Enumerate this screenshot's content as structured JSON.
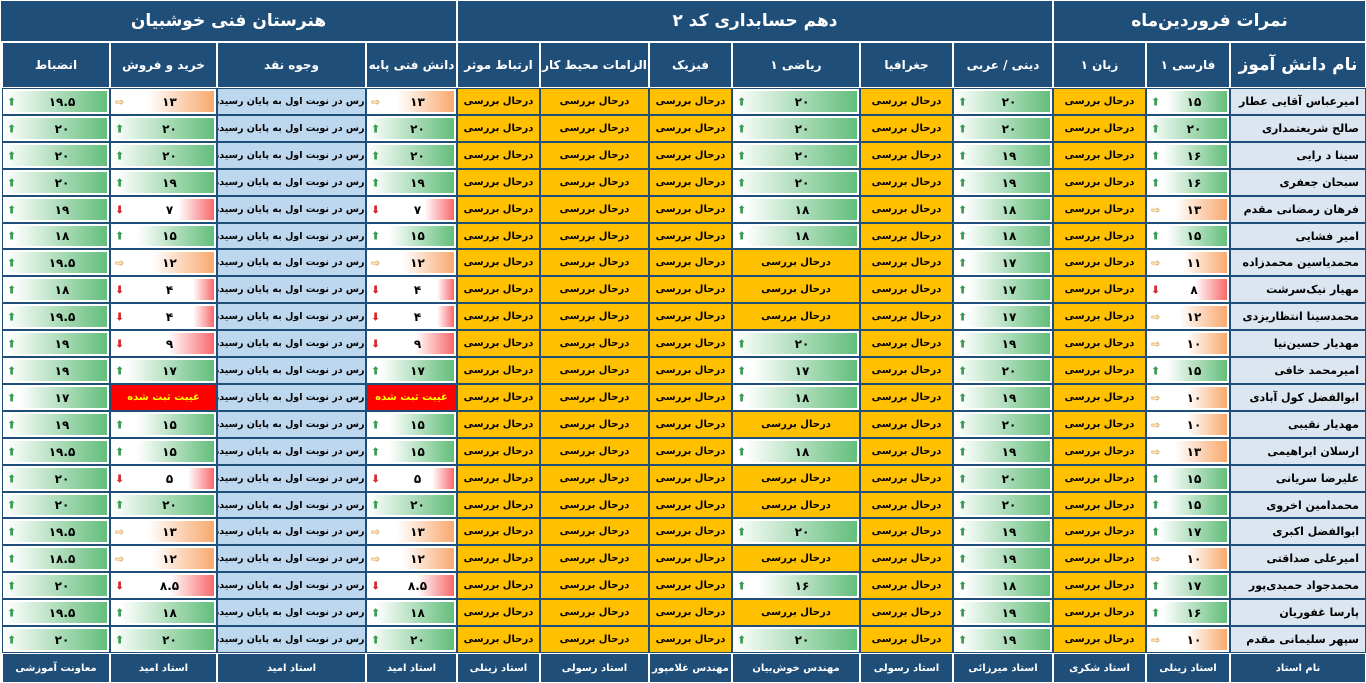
{
  "headers": {
    "right_title": "نمرات فروردین‌ماه",
    "middle_title": "دهم حسابداری کد ۲",
    "left_title": "هنرستان فنی خوشبیان"
  },
  "columns": [
    {
      "key": "name",
      "label": "نام دانش آموز",
      "teacher": "نام استاد"
    },
    {
      "key": "farsi",
      "label": "فارسی ۱",
      "teacher": "استاد زینلی"
    },
    {
      "key": "zaban",
      "label": "زبان ۱",
      "teacher": "استاد شکری"
    },
    {
      "key": "dini",
      "label": "دینی / عربی",
      "teacher": "استاد میرزائی"
    },
    {
      "key": "joghrafi",
      "label": "جغرافیا",
      "teacher": "استاد رسولی"
    },
    {
      "key": "riazi",
      "label": "ریاضی ۱",
      "teacher": "مهندس خوش‌بیان"
    },
    {
      "key": "fizik",
      "label": "فیزیک",
      "teacher": "مهندس غلامپور"
    },
    {
      "key": "elzamat",
      "label": "الزامات محیط کار",
      "teacher": "استاد رسولی"
    },
    {
      "key": "ertebat",
      "label": "ارتباط موثر",
      "teacher": "استاد زینلی"
    },
    {
      "key": "danesh",
      "label": "دانش فنی پایه",
      "teacher": "استاد امید"
    },
    {
      "key": "vojooh",
      "label": "وجوه نقد",
      "teacher": "استاد امید"
    },
    {
      "key": "kharid",
      "label": "خرید و فروش",
      "teacher": "استاد امید"
    },
    {
      "key": "enzebat",
      "label": "انضباط",
      "teacher": "معاونت آموزشی"
    }
  ],
  "status_texts": {
    "review": "درحال بررسی",
    "end_turn": "درس در نوبت اول به پایان رسیده",
    "absent": "غیبت ثبت شده"
  },
  "rows": [
    {
      "name": "امیرعباس آقایی عطار",
      "farsi": "۱۵",
      "zaban": "R",
      "dini": "۲۰",
      "joghrafi": "R",
      "riazi": "۲۰",
      "fizik": "R",
      "elzamat": "R",
      "ertebat": "R",
      "danesh": "۱۳",
      "vojooh": "E",
      "kharid": "۱۳",
      "enzebat": "۱۹.۵"
    },
    {
      "name": "صالح شریعتمداری",
      "farsi": "۲۰",
      "zaban": "R",
      "dini": "۲۰",
      "joghrafi": "R",
      "riazi": "۲۰",
      "fizik": "R",
      "elzamat": "R",
      "ertebat": "R",
      "danesh": "۲۰",
      "vojooh": "E",
      "kharid": "۲۰",
      "enzebat": "۲۰"
    },
    {
      "name": "سینا د رایی",
      "farsi": "۱۶",
      "zaban": "R",
      "dini": "۱۹",
      "joghrafi": "R",
      "riazi": "۲۰",
      "fizik": "R",
      "elzamat": "R",
      "ertebat": "R",
      "danesh": "۲۰",
      "vojooh": "E",
      "kharid": "۲۰",
      "enzebat": "۲۰"
    },
    {
      "name": "سبحان جعفری",
      "farsi": "۱۶",
      "zaban": "R",
      "dini": "۱۹",
      "joghrafi": "R",
      "riazi": "۲۰",
      "fizik": "R",
      "elzamat": "R",
      "ertebat": "R",
      "danesh": "۱۹",
      "vojooh": "E",
      "kharid": "۱۹",
      "enzebat": "۲۰"
    },
    {
      "name": "فرهان رمضانی مقدم",
      "farsi": "۱۳",
      "zaban": "R",
      "dini": "۱۸",
      "joghrafi": "R",
      "riazi": "۱۸",
      "fizik": "R",
      "elzamat": "R",
      "ertebat": "R",
      "danesh": "۷",
      "vojooh": "E",
      "kharid": "۷",
      "enzebat": "۱۹"
    },
    {
      "name": "امیر فشایی",
      "farsi": "۱۵",
      "zaban": "R",
      "dini": "۱۸",
      "joghrafi": "R",
      "riazi": "۱۸",
      "fizik": "R",
      "elzamat": "R",
      "ertebat": "R",
      "danesh": "۱۵",
      "vojooh": "E",
      "kharid": "۱۵",
      "enzebat": "۱۸"
    },
    {
      "name": "محمدیاسین محمدزاده",
      "farsi": "۱۱",
      "zaban": "R",
      "dini": "۱۷",
      "joghrafi": "R",
      "riazi": "R",
      "fizik": "R",
      "elzamat": "R",
      "ertebat": "R",
      "danesh": "۱۲",
      "vojooh": "E",
      "kharid": "۱۲",
      "enzebat": "۱۹.۵"
    },
    {
      "name": "مهیار نیک‌سرشت",
      "farsi": "۸",
      "zaban": "R",
      "dini": "۱۷",
      "joghrafi": "R",
      "riazi": "R",
      "fizik": "R",
      "elzamat": "R",
      "ertebat": "R",
      "danesh": "۴",
      "vojooh": "E",
      "kharid": "۴",
      "enzebat": "۱۸"
    },
    {
      "name": "محمدسینا انتظاریزدی",
      "farsi": "۱۲",
      "zaban": "R",
      "dini": "۱۷",
      "joghrafi": "R",
      "riazi": "R",
      "fizik": "R",
      "elzamat": "R",
      "ertebat": "R",
      "danesh": "۴",
      "vojooh": "E",
      "kharid": "۴",
      "enzebat": "۱۹.۵"
    },
    {
      "name": "مهدیار حسین‌نیا",
      "farsi": "۱۰",
      "zaban": "R",
      "dini": "۱۹",
      "joghrafi": "R",
      "riazi": "۲۰",
      "fizik": "R",
      "elzamat": "R",
      "ertebat": "R",
      "danesh": "۹",
      "vojooh": "E",
      "kharid": "۹",
      "enzebat": "۱۹"
    },
    {
      "name": "امیرمحمد خافی",
      "farsi": "۱۵",
      "zaban": "R",
      "dini": "۲۰",
      "joghrafi": "R",
      "riazi": "۱۷",
      "fizik": "R",
      "elzamat": "R",
      "ertebat": "R",
      "danesh": "۱۷",
      "vojooh": "E",
      "kharid": "۱۷",
      "enzebat": "۱۹"
    },
    {
      "name": "ابوالفضل کول آبادی",
      "farsi": "۱۰",
      "zaban": "R",
      "dini": "۱۹",
      "joghrafi": "R",
      "riazi": "۱۸",
      "fizik": "R",
      "elzamat": "R",
      "ertebat": "R",
      "danesh": "A",
      "vojooh": "E",
      "kharid": "A",
      "enzebat": "۱۷"
    },
    {
      "name": "مهدیار نقیبی",
      "farsi": "۱۰",
      "zaban": "R",
      "dini": "۲۰",
      "joghrafi": "R",
      "riazi": "R",
      "fizik": "R",
      "elzamat": "R",
      "ertebat": "R",
      "danesh": "۱۵",
      "vojooh": "E",
      "kharid": "۱۵",
      "enzebat": "۱۹"
    },
    {
      "name": "ارسلان ابراهیمی",
      "farsi": "۱۳",
      "zaban": "R",
      "dini": "۱۹",
      "joghrafi": "R",
      "riazi": "۱۸",
      "fizik": "R",
      "elzamat": "R",
      "ertebat": "R",
      "danesh": "۱۵",
      "vojooh": "E",
      "kharid": "۱۵",
      "enzebat": "۱۹.۵"
    },
    {
      "name": "علیرضا سریانی",
      "farsi": "۱۵",
      "zaban": "R",
      "dini": "۲۰",
      "joghrafi": "R",
      "riazi": "R",
      "fizik": "R",
      "elzamat": "R",
      "ertebat": "R",
      "danesh": "۵",
      "vojooh": "E",
      "kharid": "۵",
      "enzebat": "۲۰"
    },
    {
      "name": "محمدامین اخروی",
      "farsi": "۱۵",
      "zaban": "R",
      "dini": "۲۰",
      "joghrafi": "R",
      "riazi": "R",
      "fizik": "R",
      "elzamat": "R",
      "ertebat": "R",
      "danesh": "۲۰",
      "vojooh": "E",
      "kharid": "۲۰",
      "enzebat": "۲۰"
    },
    {
      "name": "ابوالفضل اکبری",
      "farsi": "۱۷",
      "zaban": "R",
      "dini": "۱۹",
      "joghrafi": "R",
      "riazi": "۲۰",
      "fizik": "R",
      "elzamat": "R",
      "ertebat": "R",
      "danesh": "۱۳",
      "vojooh": "E",
      "kharid": "۱۳",
      "enzebat": "۱۹.۵"
    },
    {
      "name": "امیرعلی صداقتی",
      "farsi": "۱۰",
      "zaban": "R",
      "dini": "۱۹",
      "joghrafi": "R",
      "riazi": "R",
      "fizik": "R",
      "elzamat": "R",
      "ertebat": "R",
      "danesh": "۱۲",
      "vojooh": "E",
      "kharid": "۱۲",
      "enzebat": "۱۸.۵"
    },
    {
      "name": "محمدجواد حمیدی‌پور",
      "farsi": "۱۷",
      "zaban": "R",
      "dini": "۱۸",
      "joghrafi": "R",
      "riazi": "۱۶",
      "fizik": "R",
      "elzamat": "R",
      "ertebat": "R",
      "danesh": "۸.۵",
      "vojooh": "E",
      "kharid": "۸.۵",
      "enzebat": "۲۰"
    },
    {
      "name": "پارسا غفوریان",
      "farsi": "۱۶",
      "zaban": "R",
      "dini": "۱۹",
      "joghrafi": "R",
      "riazi": "R",
      "fizik": "R",
      "elzamat": "R",
      "ertebat": "R",
      "danesh": "۱۸",
      "vojooh": "E",
      "kharid": "۱۸",
      "enzebat": "۱۹.۵"
    },
    {
      "name": "سپهر سلیمانی مقدم",
      "farsi": "۱۰",
      "zaban": "R",
      "dini": "۱۹",
      "joghrafi": "R",
      "riazi": "۲۰",
      "fizik": "R",
      "elzamat": "R",
      "ertebat": "R",
      "danesh": "۲۰",
      "vojooh": "E",
      "kharid": "۲۰",
      "enzebat": "۲۰"
    }
  ],
  "colors": {
    "header_bg": "#1f4e79",
    "review_bg": "#ffc000",
    "end_turn_bg": "#bdd7ee",
    "absent_bg": "#ff0000",
    "name_bg": "#dce6f1",
    "high_fill": "#63be7b",
    "low_fill": "#f8696b"
  },
  "icons": {
    "up": "arrow-up-icon",
    "side": "arrow-right-icon",
    "down": "arrow-down-icon"
  }
}
